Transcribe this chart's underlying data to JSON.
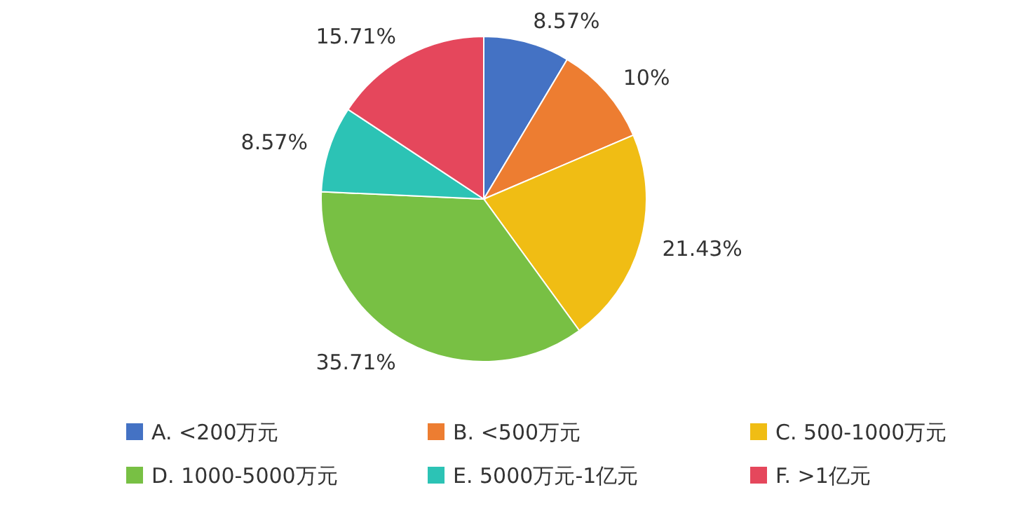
{
  "chart_data": {
    "type": "pie",
    "categories": [
      "A. <200万元",
      "B. <500万元",
      "C. 500-1000万元",
      "D. 1000-5000万元",
      "E. 5000万元-1亿元",
      "F. >1亿元"
    ],
    "values": [
      8.57,
      10,
      21.43,
      35.71,
      8.57,
      15.71
    ],
    "colors": [
      "#4472c4",
      "#ed7d31",
      "#f0bd14",
      "#78c044",
      "#2cc3b5",
      "#e5475c"
    ],
    "value_labels": [
      "8.57%",
      "10%",
      "21.43%",
      "35.71%",
      "8.57%",
      "15.71%"
    ],
    "legend": "bottom"
  }
}
